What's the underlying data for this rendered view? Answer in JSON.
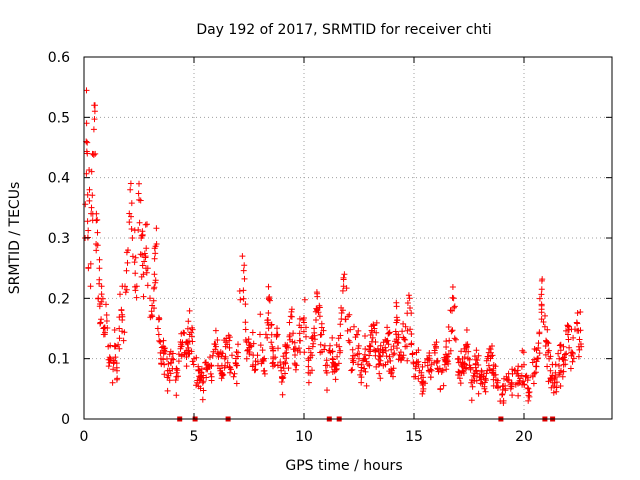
{
  "chart_data": {
    "type": "scatter",
    "title": "Day 192 of 2017, SRMTID for receiver chti",
    "xlabel": "GPS time / hours",
    "ylabel": "SRMTID / TECUs",
    "xlim": [
      0,
      24
    ],
    "ylim": [
      0,
      0.6
    ],
    "xticks": [
      0,
      5,
      10,
      15,
      20
    ],
    "xtick_labels": [
      "0",
      "5",
      "10",
      "15",
      "20"
    ],
    "yticks": [
      0,
      0.1,
      0.2,
      0.3,
      0.4,
      0.5,
      0.6
    ],
    "ytick_labels": [
      "0",
      "0.1",
      "0.2",
      "0.3",
      "0.4",
      "0.5",
      "0.6"
    ],
    "grid": true,
    "marker": "plus",
    "marker_color": "#ff0000",
    "series": [
      {
        "name": "SRMTID",
        "x": [
          0.05,
          0.1,
          0.15,
          0.2,
          0.25,
          0.3,
          0.35,
          0.4,
          0.45,
          0.5,
          0.55,
          0.6,
          0.65,
          0.7,
          0.75,
          0.8,
          0.9,
          1.0,
          1.1,
          1.2,
          1.3,
          1.4,
          1.5,
          1.6,
          1.7,
          1.8,
          1.9,
          2.0,
          2.1,
          2.2,
          2.3,
          2.4,
          2.5,
          2.6,
          2.7,
          2.8,
          2.9,
          3.0,
          3.1,
          3.2,
          3.3,
          3.4,
          3.5,
          3.6,
          3.8,
          4.0,
          4.2,
          4.4,
          4.6,
          4.8,
          5.0,
          5.2,
          5.4,
          5.6,
          5.8,
          6.0,
          6.2,
          6.4,
          6.6,
          6.8,
          7.0,
          7.2,
          7.4,
          7.6,
          7.8,
          8.0,
          8.2,
          8.4,
          8.6,
          8.8,
          9.0,
          9.2,
          9.4,
          9.6,
          9.8,
          10.0,
          10.2,
          10.4,
          10.6,
          10.8,
          11.0,
          11.2,
          11.4,
          11.6,
          11.8,
          12.0,
          12.2,
          12.4,
          12.6,
          12.8,
          13.0,
          13.2,
          13.4,
          13.6,
          13.8,
          14.0,
          14.2,
          14.4,
          14.6,
          14.8,
          15.0,
          15.2,
          15.4,
          15.6,
          15.8,
          16.0,
          16.2,
          16.4,
          16.6,
          16.8,
          17.0,
          17.2,
          17.4,
          17.6,
          17.8,
          18.0,
          18.2,
          18.4,
          18.6,
          18.8,
          19.0,
          19.2,
          19.4,
          19.6,
          19.8,
          20.0,
          20.2,
          20.4,
          20.6,
          20.8,
          21.0,
          21.2,
          21.4,
          21.6,
          21.8,
          22.0,
          22.2,
          22.4,
          22.6
        ],
        "y": [
          0.3,
          0.46,
          0.44,
          0.25,
          0.38,
          0.22,
          0.41,
          0.34,
          0.48,
          0.52,
          0.29,
          0.33,
          0.2,
          0.25,
          0.16,
          0.22,
          0.14,
          0.19,
          0.12,
          0.1,
          0.06,
          0.12,
          0.08,
          0.15,
          0.18,
          0.13,
          0.21,
          0.28,
          0.38,
          0.3,
          0.26,
          0.22,
          0.39,
          0.3,
          0.24,
          0.27,
          0.25,
          0.2,
          0.17,
          0.24,
          0.29,
          0.14,
          0.1,
          0.12,
          0.08,
          0.1,
          0.07,
          0.12,
          0.11,
          0.14,
          0.1,
          0.08,
          0.06,
          0.09,
          0.07,
          0.12,
          0.08,
          0.1,
          0.13,
          0.07,
          0.11,
          0.27,
          0.1,
          0.12,
          0.09,
          0.14,
          0.08,
          0.2,
          0.1,
          0.14,
          0.07,
          0.11,
          0.17,
          0.09,
          0.13,
          0.16,
          0.1,
          0.12,
          0.18,
          0.14,
          0.08,
          0.11,
          0.09,
          0.12,
          0.22,
          0.17,
          0.1,
          0.14,
          0.08,
          0.1,
          0.12,
          0.15,
          0.09,
          0.11,
          0.13,
          0.08,
          0.16,
          0.1,
          0.12,
          0.2,
          0.07,
          0.09,
          0.06,
          0.1,
          0.08,
          0.12,
          0.05,
          0.09,
          0.13,
          0.2,
          0.1,
          0.08,
          0.12,
          0.06,
          0.09,
          0.07,
          0.05,
          0.11,
          0.08,
          0.06,
          0.04,
          0.07,
          0.05,
          0.08,
          0.06,
          0.09,
          0.05,
          0.07,
          0.1,
          0.19,
          0.13,
          0.08,
          0.06,
          0.1,
          0.09,
          0.14,
          0.11,
          0.16,
          0.12
        ],
        "spread": [
          0.06,
          0.1,
          0.1,
          0.08,
          0.1,
          0.06,
          0.1,
          0.08,
          0.08,
          0.06,
          0.08,
          0.08,
          0.06,
          0.06,
          0.05,
          0.06,
          0.05,
          0.05,
          0.05,
          0.04,
          0.03,
          0.05,
          0.04,
          0.05,
          0.06,
          0.05,
          0.06,
          0.08,
          0.08,
          0.08,
          0.07,
          0.07,
          0.08,
          0.08,
          0.07,
          0.07,
          0.07,
          0.06,
          0.05,
          0.06,
          0.06,
          0.05,
          0.04,
          0.04,
          0.04,
          0.04,
          0.03,
          0.04,
          0.04,
          0.04,
          0.04,
          0.03,
          0.03,
          0.03,
          0.03,
          0.04,
          0.03,
          0.04,
          0.04,
          0.03,
          0.04,
          0.07,
          0.04,
          0.04,
          0.04,
          0.04,
          0.03,
          0.05,
          0.04,
          0.05,
          0.03,
          0.04,
          0.05,
          0.04,
          0.04,
          0.05,
          0.04,
          0.04,
          0.05,
          0.05,
          0.03,
          0.04,
          0.04,
          0.04,
          0.06,
          0.05,
          0.04,
          0.05,
          0.03,
          0.04,
          0.04,
          0.05,
          0.04,
          0.04,
          0.04,
          0.03,
          0.05,
          0.04,
          0.04,
          0.06,
          0.03,
          0.03,
          0.03,
          0.04,
          0.03,
          0.04,
          0.03,
          0.04,
          0.04,
          0.06,
          0.04,
          0.03,
          0.04,
          0.03,
          0.03,
          0.03,
          0.02,
          0.04,
          0.03,
          0.03,
          0.02,
          0.03,
          0.02,
          0.03,
          0.03,
          0.04,
          0.03,
          0.03,
          0.04,
          0.06,
          0.05,
          0.03,
          0.03,
          0.04,
          0.04,
          0.05,
          0.04,
          0.05,
          0.05
        ],
        "count": 1000
      }
    ],
    "gap_markers_x": [
      4.35,
      5.05,
      6.55,
      11.15,
      11.6,
      18.95,
      20.95,
      21.3
    ]
  }
}
